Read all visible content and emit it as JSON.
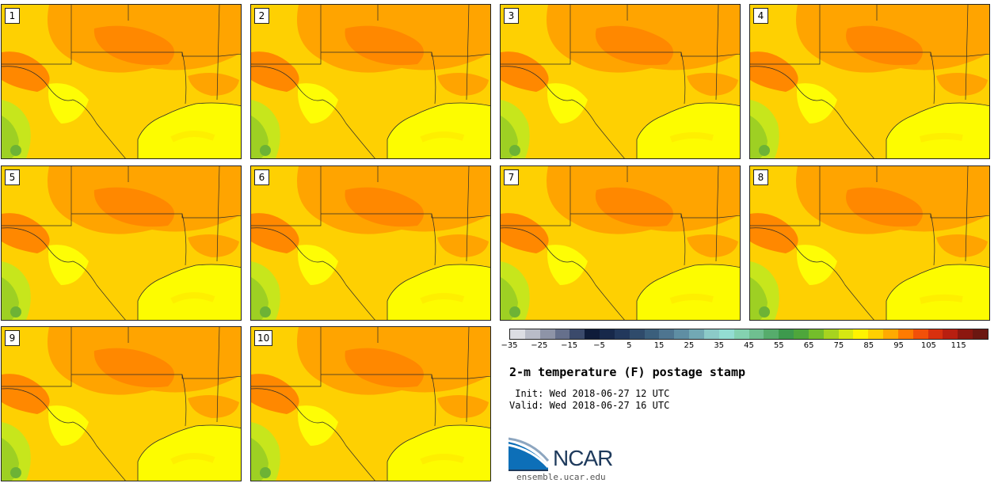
{
  "map": {
    "region": "Texas / Southern Plains / Gulf of Mexico",
    "members": [
      "1",
      "2",
      "3",
      "4",
      "5",
      "6",
      "7",
      "8",
      "9",
      "10"
    ],
    "colors": {
      "ocean": "#fdfc00",
      "land_base": "#fed002",
      "warm": "#ffa400",
      "hot": "#ff8800",
      "cool_yellow": "#fefd05",
      "green_light": "#c7e61c",
      "green_mid": "#9ed023",
      "green_dark": "#6db335",
      "border": "#2a2a2a"
    }
  },
  "legend": {
    "colors": [
      "#dcdde3",
      "#b9bcc8",
      "#8e94a7",
      "#66708c",
      "#3b4a6b",
      "#0f1c3a",
      "#17284a",
      "#22385c",
      "#2f4b6b",
      "#3b5f7c",
      "#4e7590",
      "#5f8ea3",
      "#72a8b4",
      "#8ccac8",
      "#93ddd2",
      "#84d2b0",
      "#6fbf90",
      "#56ac6c",
      "#3d9a4d",
      "#4ea63b",
      "#74bd2b",
      "#a7d31f",
      "#d6e812",
      "#fff300",
      "#ffd000",
      "#ffaa00",
      "#ff7b00",
      "#f25009",
      "#d8300e",
      "#b81f10",
      "#8c170f",
      "#6b1711"
    ],
    "ticks": [
      "−35",
      "−25",
      "−15",
      "−5",
      "5",
      "15",
      "25",
      "35",
      "45",
      "55",
      "65",
      "75",
      "85",
      "95",
      "105",
      "115"
    ]
  },
  "title": "2-m temperature (F) postage stamp",
  "init_line": " Init: Wed 2018-06-27 12 UTC",
  "valid_line": "Valid: Wed 2018-06-27 16 UTC",
  "logo_text": "NCAR",
  "website": "ensemble.ucar.edu"
}
